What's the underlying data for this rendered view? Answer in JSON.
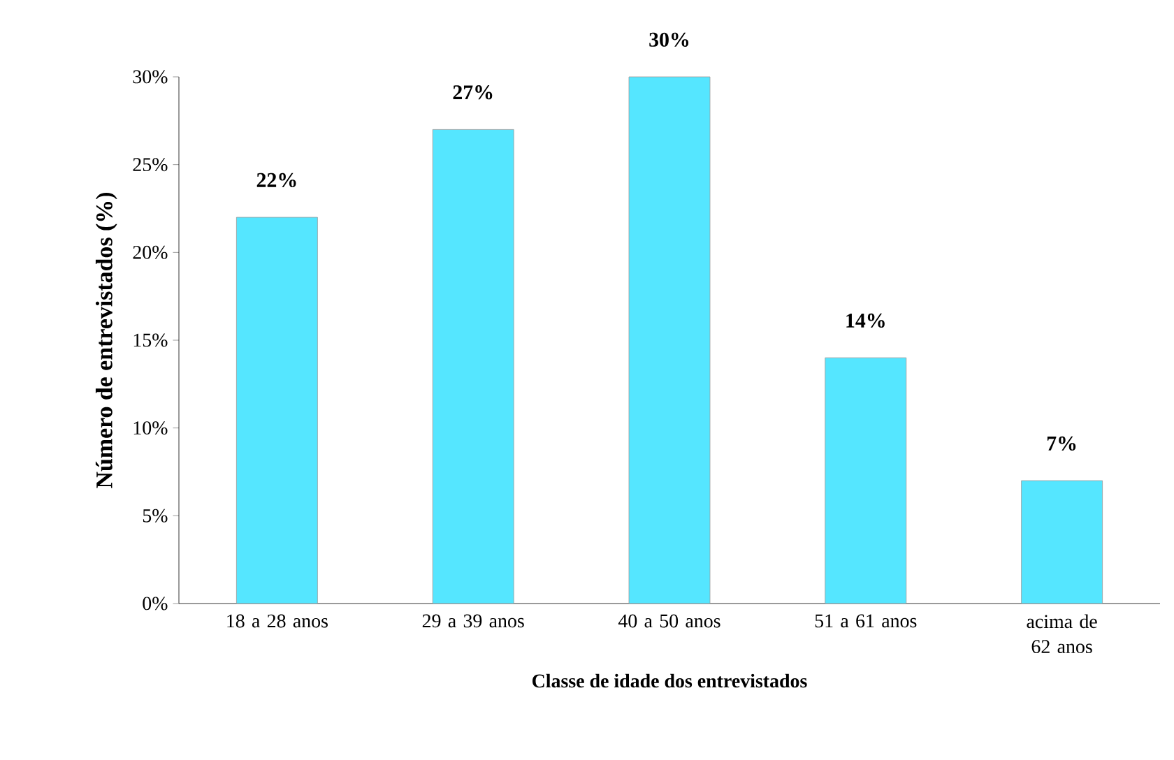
{
  "chart_data": {
    "type": "bar",
    "xlabel": "Classe de idade dos entrevistados",
    "ylabel": "Número de entrevistados (%)",
    "categories": [
      "18 a 28 anos",
      "29 a 39 anos",
      "40 a 50 anos",
      "51 a 61 anos",
      "acima de 62 anos"
    ],
    "values": [
      22,
      27,
      30,
      14,
      7
    ],
    "value_labels": [
      "22%",
      "27%",
      "30%",
      "14%",
      "7%"
    ],
    "color": "#55e6ff",
    "ylim": [
      0,
      30
    ],
    "yticks": [
      {
        "value": 0,
        "label": "0%"
      },
      {
        "value": 5,
        "label": "5%"
      },
      {
        "value": 10,
        "label": "10%"
      },
      {
        "value": 15,
        "label": "15%"
      },
      {
        "value": 20,
        "label": "20%"
      },
      {
        "value": 25,
        "label": "25%"
      },
      {
        "value": 30,
        "label": "30%"
      }
    ],
    "grid": false
  }
}
